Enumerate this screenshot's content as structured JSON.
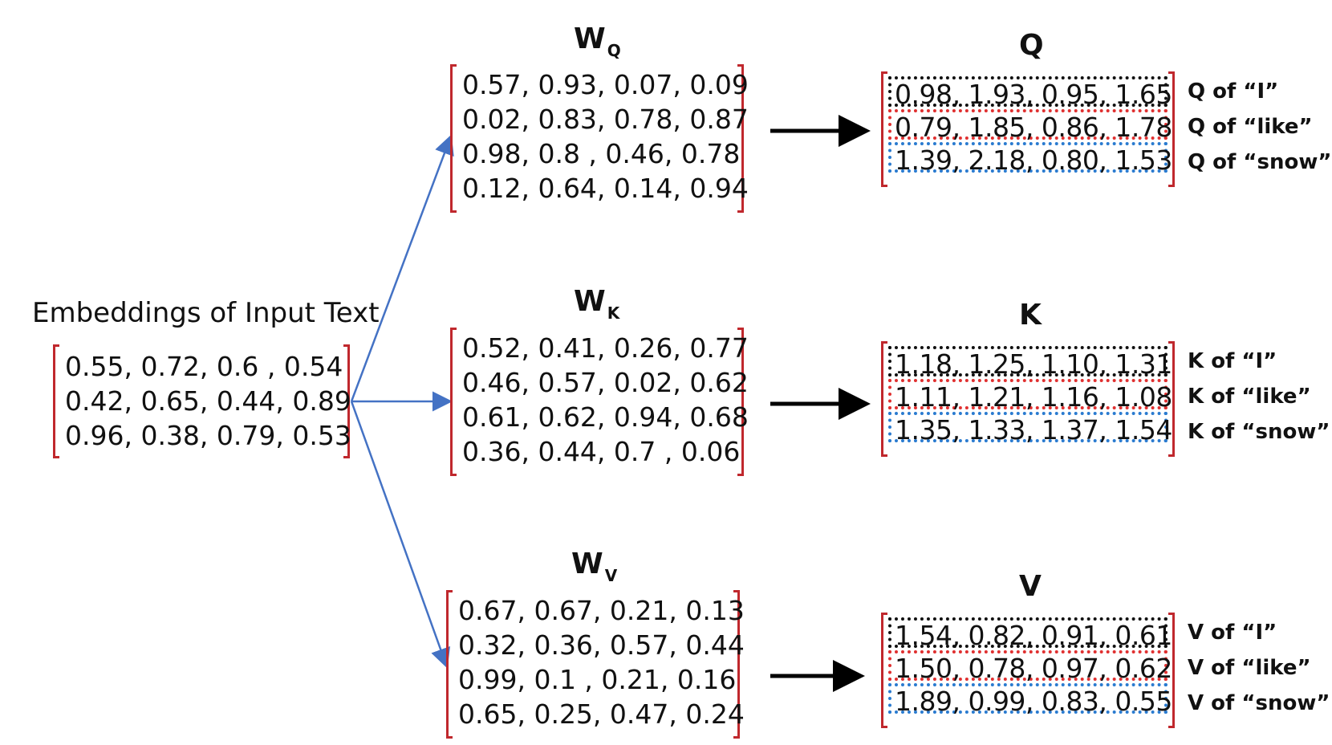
{
  "input": {
    "label": "Embeddings of Input Text",
    "rows": [
      "0.55, 0.72, 0.6 , 0.54",
      "0.42, 0.65, 0.44, 0.89",
      "0.96, 0.38, 0.79, 0.53"
    ]
  },
  "weights": [
    {
      "letter": "W",
      "sub": "Q",
      "rows": [
        "0.57, 0.93, 0.07, 0.09",
        "0.02, 0.83, 0.78, 0.87",
        "0.98, 0.8 , 0.46, 0.78",
        "0.12, 0.64, 0.14, 0.94"
      ]
    },
    {
      "letter": "W",
      "sub": "K",
      "rows": [
        "0.52, 0.41, 0.26, 0.77",
        "0.46, 0.57, 0.02, 0.62",
        "0.61, 0.62, 0.94, 0.68",
        "0.36, 0.44, 0.7 , 0.06"
      ]
    },
    {
      "letter": "W",
      "sub": "V",
      "rows": [
        "0.67, 0.67, 0.21, 0.13",
        "0.32, 0.36, 0.57, 0.44",
        "0.99, 0.1 , 0.21, 0.16",
        "0.65, 0.25, 0.47, 0.24"
      ]
    }
  ],
  "outputs": [
    {
      "title": "Q",
      "rows": [
        "0.98, 1.93, 0.95, 1.65",
        "0.79, 1.85, 0.86, 1.78",
        "1.39, 2.18, 0.80, 1.53"
      ],
      "row_labels": [
        "Q of “I”",
        "Q of “like”",
        "Q of “snow”"
      ]
    },
    {
      "title": "K",
      "rows": [
        "1.18, 1.25, 1.10, 1.31",
        "1.11, 1.21, 1.16, 1.08",
        "1.35, 1.33, 1.37, 1.54"
      ],
      "row_labels": [
        "K of “I”",
        "K of “like”",
        "K of “snow”"
      ]
    },
    {
      "title": "V",
      "rows": [
        "1.54, 0.82, 0.91, 0.61",
        "1.50, 0.78, 0.97, 0.62",
        "1.89, 0.99, 0.83, 0.55"
      ],
      "row_labels": [
        "V of “I”",
        "V of “like”",
        "V of “snow”"
      ]
    }
  ],
  "colors": {
    "bracket": "#c0282d",
    "arrow_blue": "#4472c4",
    "arrow_black": "#000000",
    "token_1": "#111111",
    "token_2": "#e03030",
    "token_3": "#2a7bd0"
  }
}
